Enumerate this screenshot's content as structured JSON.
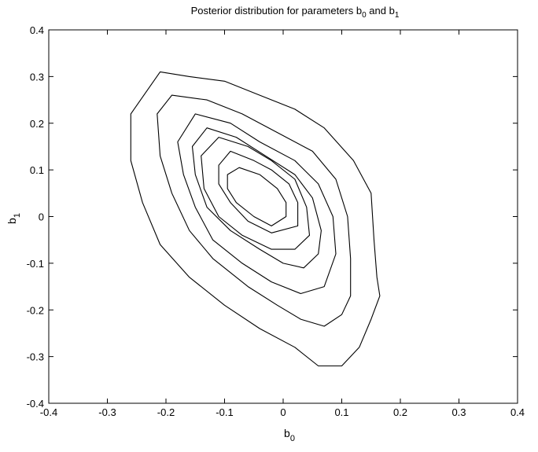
{
  "chart_data": {
    "type": "contour",
    "title": {
      "prefix": "Posterior distribution for parameters b",
      "sub1": "0",
      "middle": " and b",
      "sub2": "1"
    },
    "xlabel": {
      "base": "b",
      "sub": "0"
    },
    "ylabel": {
      "base": "b",
      "sub": "1"
    },
    "xlim": [
      -0.4,
      0.4
    ],
    "ylim": [
      -0.4,
      0.4
    ],
    "xticks": [
      -0.4,
      -0.3,
      -0.2,
      -0.1,
      0,
      0.1,
      0.2,
      0.3,
      0.4
    ],
    "yticks": [
      -0.4,
      -0.3,
      -0.2,
      -0.1,
      0,
      0.1,
      0.2,
      0.3,
      0.4
    ],
    "xtick_labels": [
      "-0.4",
      "-0.3",
      "-0.2",
      "-0.1",
      "0",
      "0.1",
      "0.2",
      "0.3",
      "0.4"
    ],
    "ytick_labels": [
      "-0.4",
      "-0.3",
      "-0.2",
      "-0.1",
      "0",
      "0.1",
      "0.2",
      "0.3",
      "0.4"
    ],
    "grid": false,
    "line_color": "#000000",
    "contours": [
      {
        "level": 1,
        "points": [
          [
            -0.21,
            0.31
          ],
          [
            -0.16,
            0.3
          ],
          [
            -0.1,
            0.29
          ],
          [
            -0.04,
            0.26
          ],
          [
            0.02,
            0.23
          ],
          [
            0.07,
            0.19
          ],
          [
            0.12,
            0.12
          ],
          [
            0.15,
            0.05
          ],
          [
            0.155,
            -0.05
          ],
          [
            0.16,
            -0.13
          ],
          [
            0.165,
            -0.17
          ],
          [
            0.15,
            -0.22
          ],
          [
            0.13,
            -0.28
          ],
          [
            0.1,
            -0.32
          ],
          [
            0.06,
            -0.32
          ],
          [
            0.02,
            -0.28
          ],
          [
            -0.04,
            -0.24
          ],
          [
            -0.1,
            -0.19
          ],
          [
            -0.16,
            -0.13
          ],
          [
            -0.21,
            -0.06
          ],
          [
            -0.24,
            0.03
          ],
          [
            -0.26,
            0.12
          ],
          [
            -0.26,
            0.22
          ]
        ]
      },
      {
        "level": 2,
        "points": [
          [
            -0.19,
            0.26
          ],
          [
            -0.13,
            0.25
          ],
          [
            -0.07,
            0.22
          ],
          [
            -0.01,
            0.18
          ],
          [
            0.05,
            0.14
          ],
          [
            0.09,
            0.08
          ],
          [
            0.11,
            0.0
          ],
          [
            0.115,
            -0.09
          ],
          [
            0.115,
            -0.17
          ],
          [
            0.1,
            -0.21
          ],
          [
            0.07,
            -0.235
          ],
          [
            0.03,
            -0.22
          ],
          [
            -0.01,
            -0.19
          ],
          [
            -0.06,
            -0.15
          ],
          [
            -0.12,
            -0.09
          ],
          [
            -0.16,
            -0.03
          ],
          [
            -0.19,
            0.05
          ],
          [
            -0.21,
            0.13
          ],
          [
            -0.215,
            0.22
          ]
        ]
      },
      {
        "level": 3,
        "points": [
          [
            -0.15,
            0.22
          ],
          [
            -0.09,
            0.2
          ],
          [
            -0.04,
            0.16
          ],
          [
            0.02,
            0.12
          ],
          [
            0.06,
            0.07
          ],
          [
            0.085,
            0.0
          ],
          [
            0.09,
            -0.08
          ],
          [
            0.07,
            -0.15
          ],
          [
            0.03,
            -0.165
          ],
          [
            -0.02,
            -0.14
          ],
          [
            -0.07,
            -0.1
          ],
          [
            -0.12,
            -0.05
          ],
          [
            -0.15,
            0.02
          ],
          [
            -0.17,
            0.09
          ],
          [
            -0.18,
            0.16
          ]
        ]
      },
      {
        "level": 4,
        "points": [
          [
            -0.13,
            0.19
          ],
          [
            -0.08,
            0.17
          ],
          [
            -0.03,
            0.13
          ],
          [
            0.02,
            0.09
          ],
          [
            0.05,
            0.04
          ],
          [
            0.065,
            -0.03
          ],
          [
            0.06,
            -0.08
          ],
          [
            0.035,
            -0.11
          ],
          [
            0.0,
            -0.1
          ],
          [
            -0.04,
            -0.07
          ],
          [
            -0.09,
            -0.03
          ],
          [
            -0.13,
            0.02
          ],
          [
            -0.15,
            0.09
          ],
          [
            -0.155,
            0.15
          ]
        ]
      },
      {
        "level": 5,
        "points": [
          [
            -0.11,
            0.17
          ],
          [
            -0.06,
            0.15
          ],
          [
            -0.02,
            0.12
          ],
          [
            0.02,
            0.08
          ],
          [
            0.04,
            0.02
          ],
          [
            0.045,
            -0.04
          ],
          [
            0.02,
            -0.07
          ],
          [
            -0.02,
            -0.07
          ],
          [
            -0.07,
            -0.04
          ],
          [
            -0.11,
            0.0
          ],
          [
            -0.135,
            0.06
          ],
          [
            -0.14,
            0.13
          ]
        ]
      },
      {
        "level": 6,
        "points": [
          [
            -0.09,
            0.14
          ],
          [
            -0.05,
            0.12
          ],
          [
            -0.02,
            0.1
          ],
          [
            0.01,
            0.07
          ],
          [
            0.025,
            0.03
          ],
          [
            0.025,
            -0.02
          ],
          [
            -0.02,
            -0.035
          ],
          [
            -0.06,
            -0.01
          ],
          [
            -0.09,
            0.03
          ],
          [
            -0.11,
            0.07
          ],
          [
            -0.11,
            0.11
          ]
        ]
      },
      {
        "level": 7,
        "points": [
          [
            -0.075,
            0.105
          ],
          [
            -0.04,
            0.09
          ],
          [
            -0.01,
            0.06
          ],
          [
            0.005,
            0.03
          ],
          [
            0.005,
            0.0
          ],
          [
            -0.02,
            -0.02
          ],
          [
            -0.05,
            0.0
          ],
          [
            -0.08,
            0.03
          ],
          [
            -0.095,
            0.06
          ],
          [
            -0.095,
            0.09
          ]
        ]
      }
    ]
  }
}
